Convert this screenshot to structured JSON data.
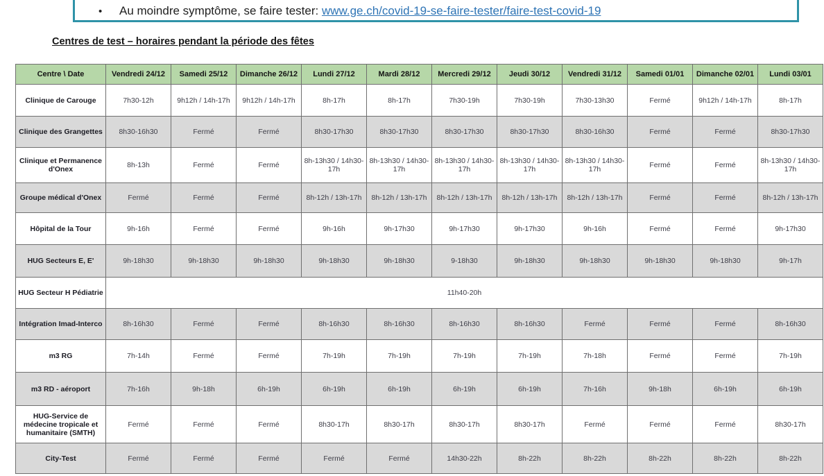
{
  "notice": {
    "bullet": "•",
    "text": "Au moindre symptôme, se faire tester: ",
    "link": "www.ge.ch/covid-19-se-faire-tester/faire-test-covid-19"
  },
  "heading": "Centres de test – horaires pendant la période des fêtes",
  "colors": {
    "header_green": "#b6d7a8",
    "row_gray": "#d9d9d9",
    "link_blue": "#2e74b5",
    "box_teal": "#2f93a8"
  },
  "table": {
    "columns": [
      "Centre \\ Date",
      "Vendredi 24/12",
      "Samedi 25/12",
      "Dimanche 26/12",
      "Lundi 27/12",
      "Mardi 28/12",
      "Mercredi 29/12",
      "Jeudi 30/12",
      "Vendredi 31/12",
      "Samedi 01/01",
      "Dimanche 02/01",
      "Lundi 03/01"
    ],
    "rows": [
      {
        "centre": "Clinique de Carouge",
        "shaded": false,
        "cells": [
          "7h30-12h",
          "9h12h / 14h-17h",
          "9h12h / 14h-17h",
          "8h-17h",
          "8h-17h",
          "7h30-19h",
          "7h30-19h",
          "7h30-13h30",
          "Fermé",
          "9h12h / 14h-17h",
          "8h-17h"
        ]
      },
      {
        "centre": "Clinique des Grangettes",
        "shaded": true,
        "cells": [
          "8h30-16h30",
          "Fermé",
          "Fermé",
          "8h30-17h30",
          "8h30-17h30",
          "8h30-17h30",
          "8h30-17h30",
          "8h30-16h30",
          "Fermé",
          "Fermé",
          "8h30-17h30"
        ]
      },
      {
        "centre": "Clinique et Permanence d'Onex",
        "shaded": false,
        "cells": [
          "8h-13h",
          "Fermé",
          "Fermé",
          "8h-13h30 / 14h30-17h",
          "8h-13h30 / 14h30-17h",
          "8h-13h30 / 14h30-17h",
          "8h-13h30 / 14h30-17h",
          "8h-13h30 / 14h30-17h",
          "Fermé",
          "Fermé",
          "8h-13h30 / 14h30-17h"
        ]
      },
      {
        "centre": "Groupe médical d'Onex",
        "shaded": true,
        "cells": [
          "Fermé",
          "Fermé",
          "Fermé",
          "8h-12h / 13h-17h",
          "8h-12h / 13h-17h",
          "8h-12h / 13h-17h",
          "8h-12h / 13h-17h",
          "8h-12h / 13h-17h",
          "Fermé",
          "Fermé",
          "8h-12h / 13h-17h"
        ]
      },
      {
        "centre": "Hôpital de la Tour",
        "shaded": false,
        "cells": [
          "9h-16h",
          "Fermé",
          "Fermé",
          "9h-16h",
          "9h-17h30",
          "9h-17h30",
          "9h-17h30",
          "9h-16h",
          "Fermé",
          "Fermé",
          "9h-17h30"
        ]
      },
      {
        "centre": "HUG Secteurs E, E'",
        "shaded": true,
        "cells": [
          "9h-18h30",
          "9h-18h30",
          "9h-18h30",
          "9h-18h30",
          "9h-18h30",
          "9-18h30",
          "9h-18h30",
          "9h-18h30",
          "9h-18h30",
          "9h-18h30",
          "9h-17h"
        ]
      },
      {
        "centre": "HUG Secteur H Pédiatrie",
        "shaded": false,
        "merged_cell": "11h40-20h"
      },
      {
        "centre": "Intégration Imad-Interco",
        "shaded": true,
        "cells": [
          "8h-16h30",
          "Fermé",
          "Fermé",
          "8h-16h30",
          "8h-16h30",
          "8h-16h30",
          "8h-16h30",
          "Fermé",
          "Fermé",
          "Fermé",
          "8h-16h30"
        ]
      },
      {
        "centre": "m3 RG",
        "shaded": false,
        "cells": [
          "7h-14h",
          "Fermé",
          "Fermé",
          "7h-19h",
          "7h-19h",
          "7h-19h",
          "7h-19h",
          "7h-18h",
          "Fermé",
          "Fermé",
          "7h-19h"
        ]
      },
      {
        "centre": "m3 RD - aéroport",
        "shaded": true,
        "cells": [
          "7h-16h",
          "9h-18h",
          "6h-19h",
          "6h-19h",
          "6h-19h",
          "6h-19h",
          "6h-19h",
          "7h-16h",
          "9h-18h",
          "6h-19h",
          "6h-19h"
        ]
      },
      {
        "centre": "HUG-Service de médecine tropicale et humanitaire (SMTH)",
        "shaded": false,
        "cells": [
          "Fermé",
          "Fermé",
          "Fermé",
          "8h30-17h",
          "8h30-17h",
          "8h30-17h",
          "8h30-17h",
          "Fermé",
          "Fermé",
          "Fermé",
          "8h30-17h"
        ]
      },
      {
        "centre": "City-Test",
        "shaded": true,
        "cells": [
          "Fermé",
          "Fermé",
          "Fermé",
          "Fermé",
          "Fermé",
          "14h30-22h",
          "8h-22h",
          "8h-22h",
          "8h-22h",
          "8h-22h",
          "8h-22h"
        ]
      }
    ]
  }
}
